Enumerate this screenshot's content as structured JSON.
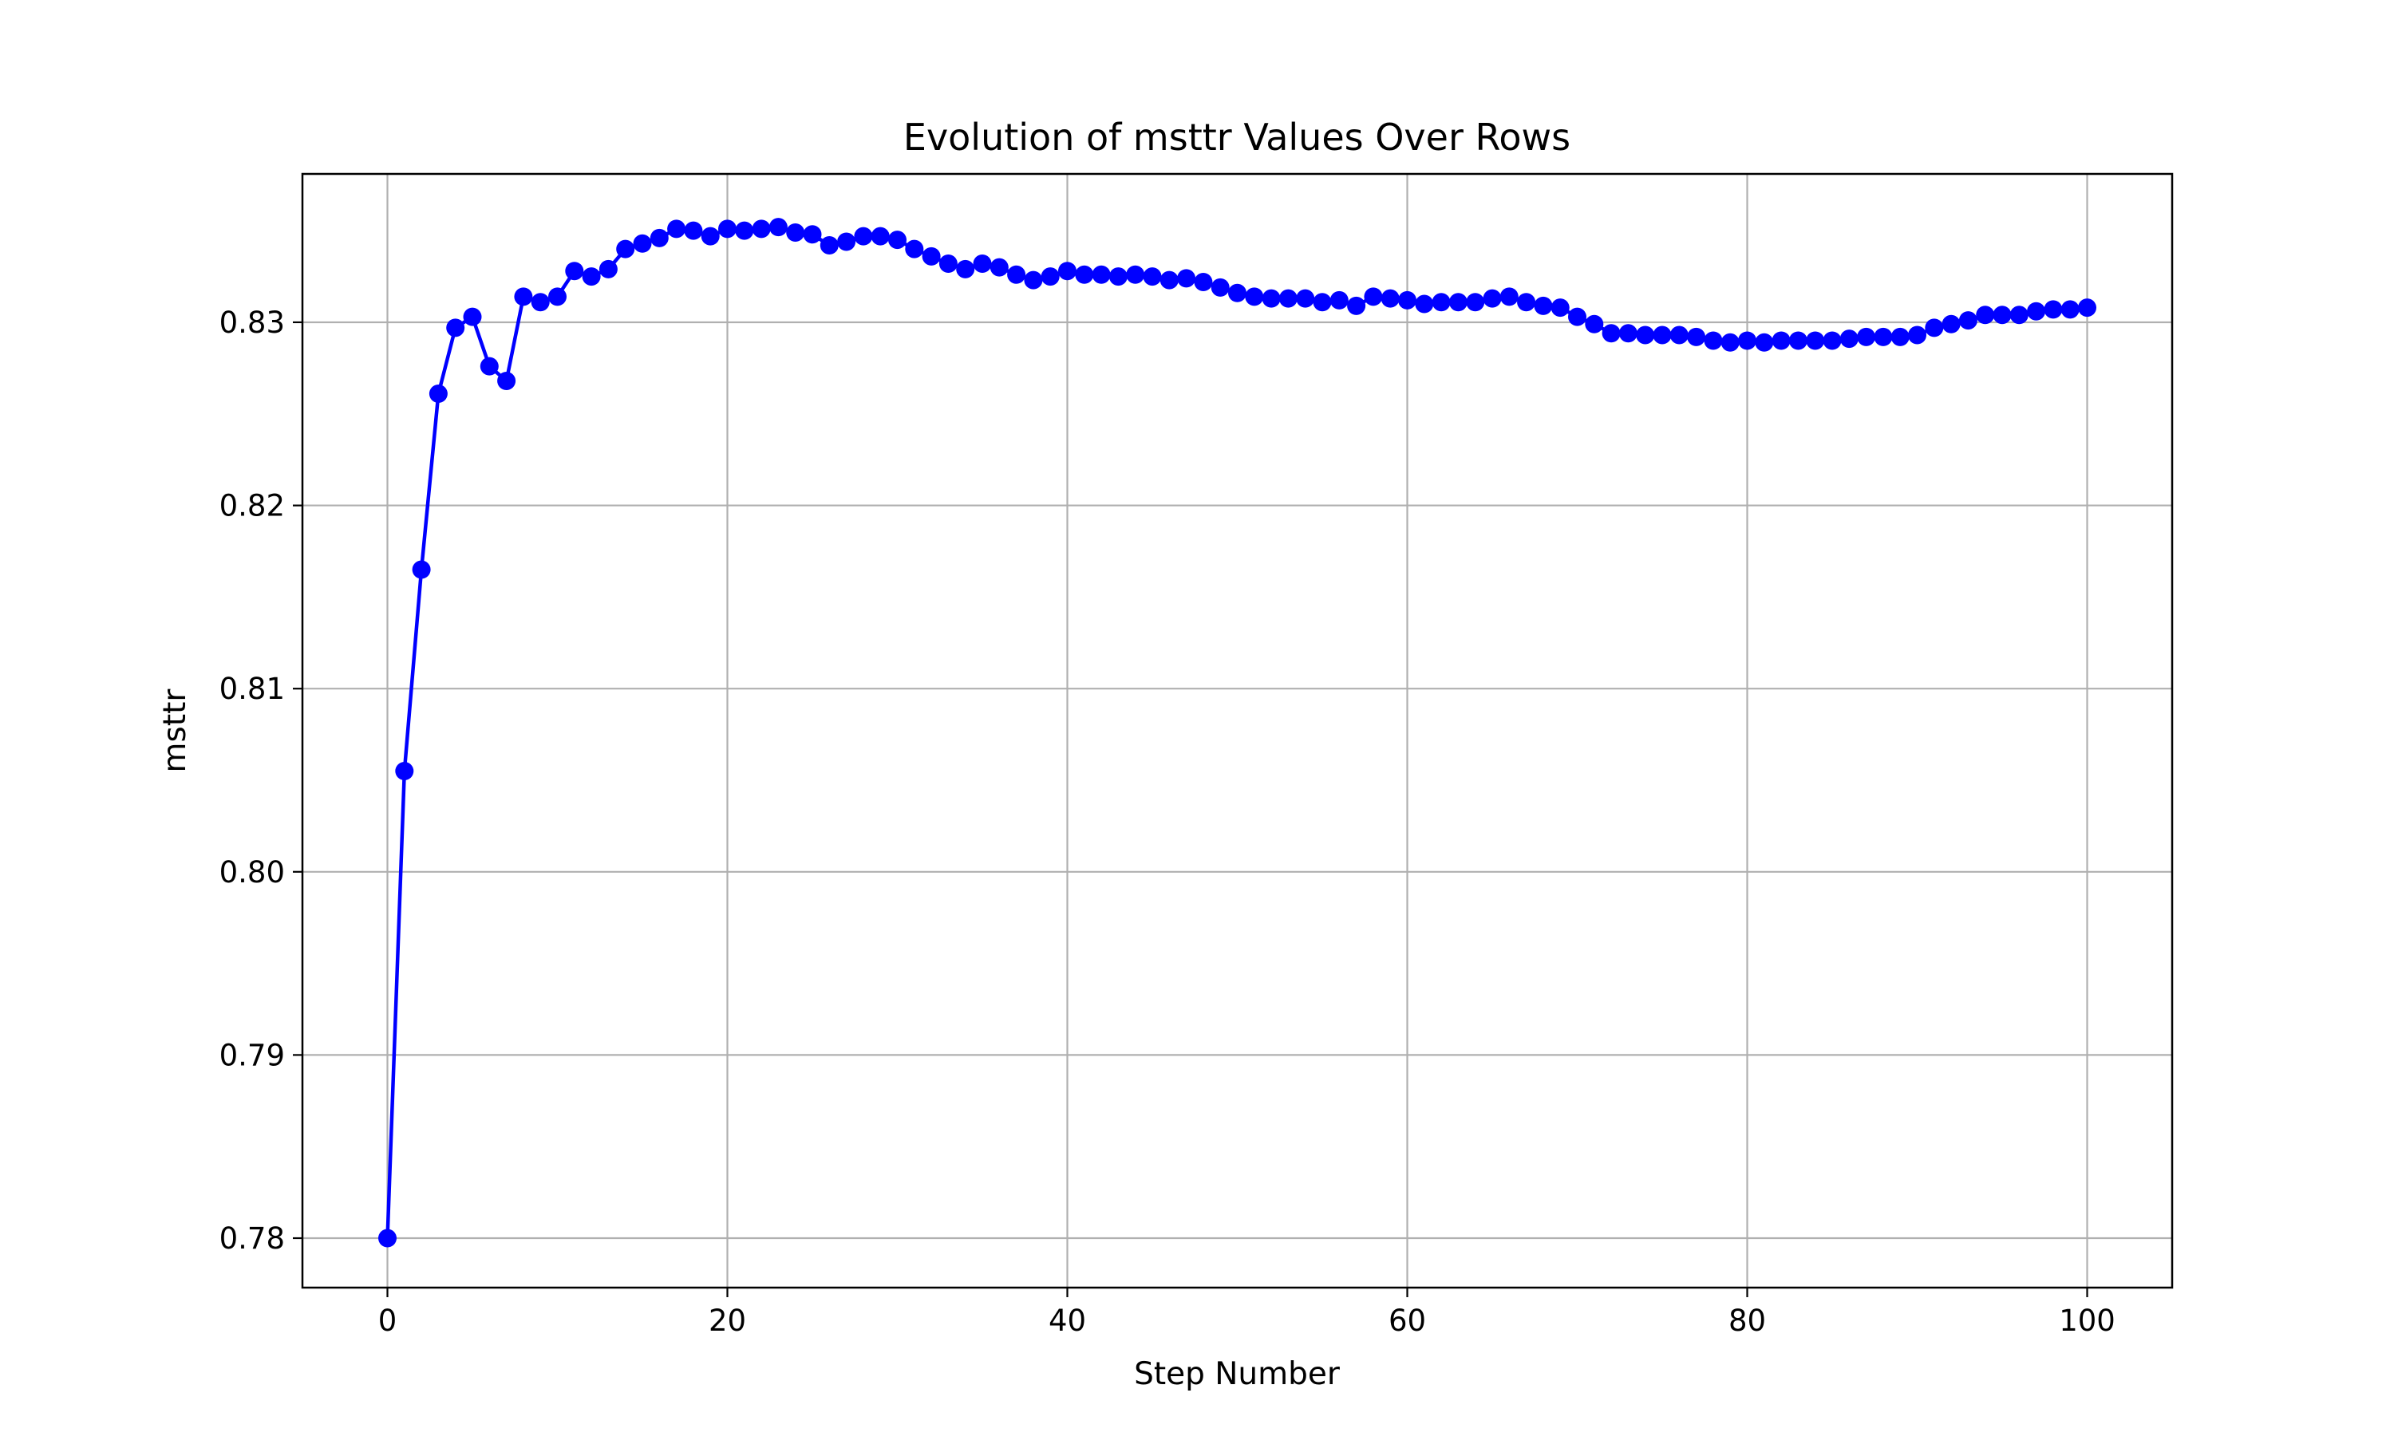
{
  "chart_data": {
    "type": "line",
    "title": "Evolution of msttr Values Over Rows",
    "xlabel": "Step Number",
    "ylabel": "msttr",
    "xlim": [
      -5,
      105
    ],
    "ylim": [
      0.7773,
      0.8381
    ],
    "xticks": [
      0,
      20,
      40,
      60,
      80,
      100
    ],
    "xtick_labels": [
      "0",
      "20",
      "40",
      "60",
      "80",
      "100"
    ],
    "yticks": [
      0.78,
      0.79,
      0.8,
      0.81,
      0.82,
      0.83
    ],
    "ytick_labels": [
      "0.78",
      "0.79",
      "0.80",
      "0.81",
      "0.82",
      "0.83"
    ],
    "grid": true,
    "legend": null,
    "line_color": "#0000ff",
    "marker": "circle",
    "series": [
      {
        "x": [
          0,
          1,
          2,
          3,
          4,
          5,
          6,
          7,
          8,
          9,
          10,
          11,
          12,
          13,
          14,
          15,
          16,
          17,
          18,
          19,
          20,
          21,
          22,
          23,
          24,
          25,
          26,
          27,
          28,
          29,
          30,
          31,
          32,
          33,
          34,
          35,
          36,
          37,
          38,
          39,
          40,
          41,
          42,
          43,
          44,
          45,
          46,
          47,
          48,
          49,
          50,
          51,
          52,
          53,
          54,
          55,
          56,
          57,
          58,
          59,
          60,
          61,
          62,
          63,
          64,
          65,
          66,
          67,
          68,
          69,
          70,
          71,
          72,
          73,
          74,
          75,
          76,
          77,
          78,
          79,
          80,
          81,
          82,
          83,
          84,
          85,
          86,
          87,
          88,
          89,
          90,
          91,
          92,
          93,
          94,
          95,
          96,
          97,
          98,
          99,
          100
        ],
        "values": [
          0.78,
          0.8055,
          0.8165,
          0.8261,
          0.8297,
          0.8303,
          0.8276,
          0.8268,
          0.8314,
          0.8311,
          0.8314,
          0.8328,
          0.8325,
          0.8329,
          0.834,
          0.8343,
          0.8346,
          0.8351,
          0.835,
          0.8347,
          0.8351,
          0.835,
          0.8351,
          0.8352,
          0.8349,
          0.8348,
          0.8342,
          0.8344,
          0.8347,
          0.8347,
          0.8345,
          0.834,
          0.8336,
          0.8332,
          0.8329,
          0.8332,
          0.833,
          0.8326,
          0.8323,
          0.8325,
          0.8328,
          0.8326,
          0.8326,
          0.8325,
          0.8326,
          0.8325,
          0.8323,
          0.8324,
          0.8322,
          0.8319,
          0.8316,
          0.8314,
          0.8313,
          0.8313,
          0.8313,
          0.8311,
          0.8312,
          0.8309,
          0.8314,
          0.8313,
          0.8312,
          0.831,
          0.8311,
          0.8311,
          0.8311,
          0.8313,
          0.8314,
          0.8311,
          0.8309,
          0.8308,
          0.8303,
          0.8299,
          0.8294,
          0.8294,
          0.8293,
          0.8293,
          0.8293,
          0.8292,
          0.829,
          0.8289,
          0.829,
          0.8289,
          0.829,
          0.829,
          0.829,
          0.829,
          0.8291,
          0.8292,
          0.8292,
          0.8292,
          0.8293,
          0.8297,
          0.8299,
          0.8301,
          0.8304,
          0.8304,
          0.8304,
          0.8306,
          0.8307,
          0.8307,
          0.8308
        ]
      }
    ]
  }
}
